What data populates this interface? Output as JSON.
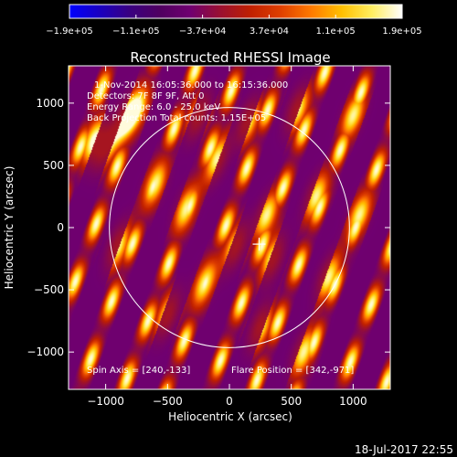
{
  "chart_data": {
    "type": "heatmap",
    "title": "Reconstructed RHESSI Image",
    "xlabel": "Heliocentric X (arcsec)",
    "ylabel": "Heliocentric Y (arcsec)",
    "xlim": [
      -1300,
      1300
    ],
    "ylim": [
      -1300,
      1300
    ],
    "xticks": [
      -1000,
      -500,
      0,
      500,
      1000
    ],
    "yticks": [
      -1000,
      -500,
      0,
      500,
      1000
    ],
    "xtick_labels": [
      "−1000",
      "−500",
      "0",
      "500",
      "1000"
    ],
    "ytick_labels": [
      "−1000",
      "−500",
      "0",
      "500",
      "1000"
    ],
    "colorbar": {
      "min": -190000,
      "max": 190000,
      "ticks": [
        "−1.9e+05",
        "−1.1e+05",
        "−3.7e+04",
        "3.7e+04",
        "1.1e+05",
        "1.9e+05"
      ],
      "colors": [
        "#0000ff",
        "#1a00c0",
        "#3a0080",
        "#500060",
        "#700070",
        "#9a1030",
        "#c02000",
        "#e04000",
        "#ff7a00",
        "#ffc000",
        "#ffee60",
        "#ffffff"
      ]
    },
    "annotations": {
      "time_range": "1-Nov-2014 16:05:36.000 to 16:15:36.000",
      "detectors": "Detectors: 7F 8F 9F, Att 0",
      "energy": "Energy Range: 6.0 - 25.0 keV",
      "method": "Back Projection   Total counts: 1.15E+05",
      "spin_axis": "Spin Axis = [240,-133]",
      "flare_position": "Flare Position = [342,-971]"
    },
    "solar_limb_radius_arcsec": 970,
    "crosshair_at": [
      240,
      -133
    ],
    "fringe_pattern": {
      "stripe_angle_deg": 70,
      "stripe_spacing_arcsec": 330,
      "bright_blobs": [
        [
          -750,
          950
        ],
        [
          -1000,
          650
        ],
        [
          -600,
          350
        ],
        [
          -900,
          -150
        ],
        [
          -1100,
          700
        ],
        [
          300,
          100
        ],
        [
          350,
          -250
        ],
        [
          -250,
          900
        ],
        [
          150,
          850
        ],
        [
          700,
          250
        ],
        [
          800,
          -400
        ],
        [
          -200,
          -450
        ],
        [
          -500,
          -700
        ],
        [
          250,
          -800
        ],
        [
          600,
          -1000
        ],
        [
          1000,
          900
        ],
        [
          550,
          950
        ],
        [
          1050,
          100
        ],
        [
          -100,
          550
        ],
        [
          -350,
          150
        ],
        [
          50,
          -150
        ],
        [
          -850,
          850
        ]
      ]
    }
  },
  "footer": {
    "date": "18-Jul-2017 22:55"
  }
}
